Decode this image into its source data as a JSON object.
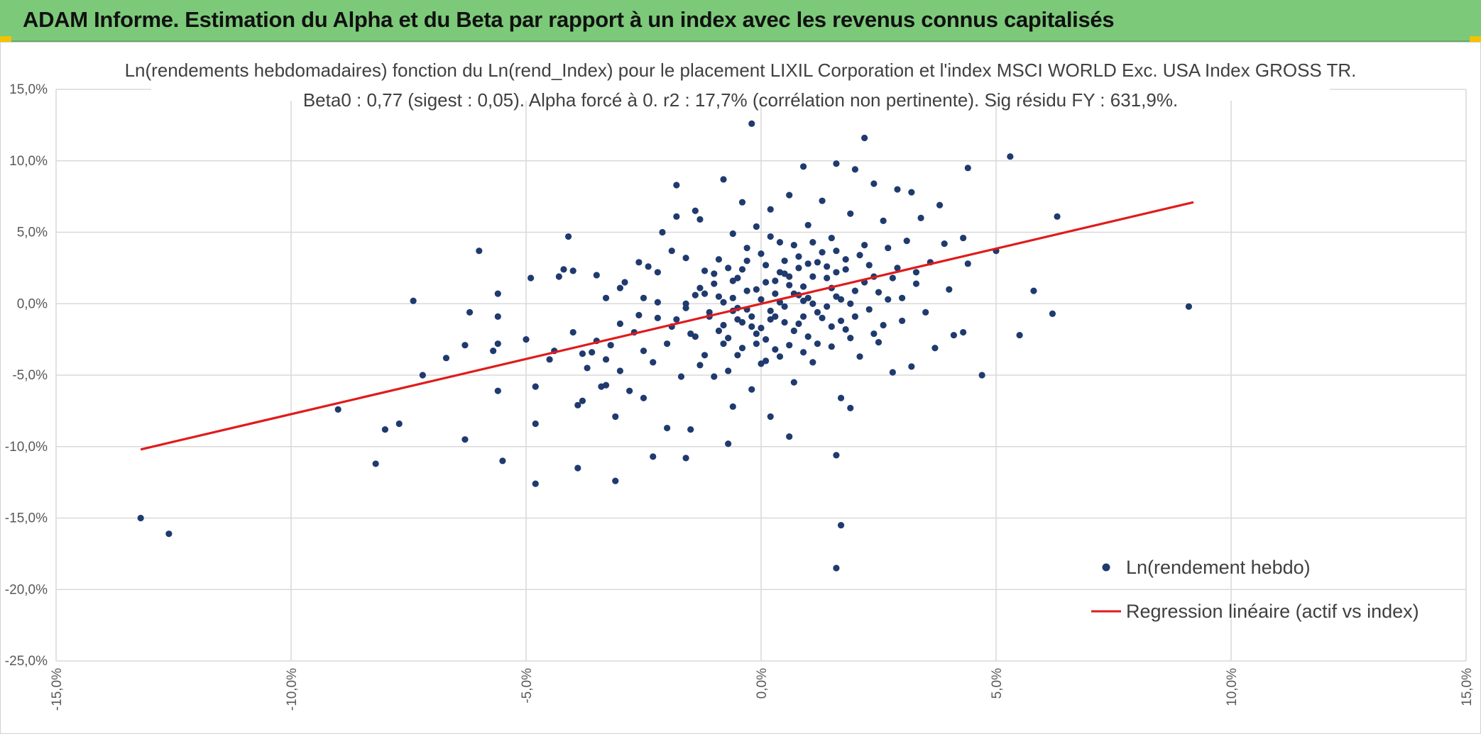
{
  "header": {
    "title": "ADAM Informe. Estimation du Alpha et du Beta par rapport à un index avec les revenus connus capitalisés"
  },
  "colors": {
    "header_bg": "#7cc97a",
    "points": "#1f3a6e",
    "regression": "#e01b1b",
    "grid": "#d9d9d9",
    "corner_accent": "#f2c200"
  },
  "chart_data": {
    "type": "scatter",
    "title_line1": "Ln(rendements hebdomadaires) fonction du Ln(rend_Index) pour le placement LIXIL Corporation et l'index MSCI WORLD Exc. USA Index GROSS TR.",
    "title_line2": "Beta0 : 0,77 (sigest : 0,05). Alpha forcé à 0. r2 : 17,7% (corrélation non pertinente). Sig résidu FY : 631,9%.",
    "xlim": [
      -15,
      15
    ],
    "ylim": [
      -25,
      15
    ],
    "x_ticks": [
      "-15,0%",
      "-10,0%",
      "-5,0%",
      "0,0%",
      "5,0%",
      "10,0%",
      "15,0%"
    ],
    "y_ticks": [
      "15,0%",
      "10,0%",
      "5,0%",
      "0,0%",
      "-5,0%",
      "-10,0%",
      "-15,0%",
      "-20,0%",
      "-25,0%"
    ],
    "grid": true,
    "legend_position": "bottom-right",
    "series": [
      {
        "name": "Ln(rendement hebdo)",
        "kind": "scatter",
        "points": [
          [
            -13.2,
            -15.0
          ],
          [
            -12.6,
            -16.1
          ],
          [
            -9.0,
            -7.4
          ],
          [
            -8.2,
            -11.2
          ],
          [
            -8.0,
            -8.8
          ],
          [
            -7.7,
            -8.4
          ],
          [
            -7.4,
            0.2
          ],
          [
            -7.2,
            -5.0
          ],
          [
            -6.7,
            -3.8
          ],
          [
            -6.3,
            -9.5
          ],
          [
            -6.2,
            -0.6
          ],
          [
            -6.3,
            -2.9
          ],
          [
            -6.0,
            3.7
          ],
          [
            -5.7,
            -3.3
          ],
          [
            -5.6,
            -2.8
          ],
          [
            -5.6,
            -0.9
          ],
          [
            -5.6,
            0.7
          ],
          [
            -5.6,
            -6.1
          ],
          [
            -5.5,
            -11.0
          ],
          [
            -5.0,
            -2.5
          ],
          [
            -4.9,
            1.8
          ],
          [
            -4.8,
            -12.6
          ],
          [
            -4.8,
            -8.4
          ],
          [
            -4.8,
            -5.8
          ],
          [
            -4.5,
            -3.9
          ],
          [
            -4.4,
            -3.3
          ],
          [
            -4.3,
            1.9
          ],
          [
            -4.2,
            2.4
          ],
          [
            -4.0,
            2.3
          ],
          [
            -4.1,
            4.7
          ],
          [
            -4.0,
            -2.0
          ],
          [
            -3.9,
            -11.5
          ],
          [
            -3.9,
            -7.1
          ],
          [
            -3.8,
            -6.8
          ],
          [
            -3.8,
            -3.5
          ],
          [
            -3.7,
            -4.5
          ],
          [
            -3.6,
            -3.4
          ],
          [
            -3.5,
            -2.6
          ],
          [
            -3.5,
            2.0
          ],
          [
            -3.4,
            -5.8
          ],
          [
            -3.3,
            -5.7
          ],
          [
            -3.3,
            -3.9
          ],
          [
            -3.3,
            0.4
          ],
          [
            -3.2,
            -2.9
          ],
          [
            -3.1,
            -12.4
          ],
          [
            -3.1,
            -7.9
          ],
          [
            -3.0,
            1.1
          ],
          [
            -3.0,
            -1.4
          ],
          [
            -3.0,
            -4.7
          ],
          [
            -2.9,
            1.5
          ],
          [
            -2.8,
            -6.1
          ],
          [
            -2.7,
            -2.0
          ],
          [
            -2.6,
            2.9
          ],
          [
            -2.6,
            -0.8
          ],
          [
            -2.5,
            -3.3
          ],
          [
            -2.5,
            -6.6
          ],
          [
            -2.4,
            2.6
          ],
          [
            -2.3,
            -10.7
          ],
          [
            -2.3,
            -4.1
          ],
          [
            -2.2,
            0.1
          ],
          [
            -2.2,
            2.2
          ],
          [
            -2.1,
            5.0
          ],
          [
            -2.0,
            -8.7
          ],
          [
            -2.0,
            -2.8
          ],
          [
            -1.9,
            3.7
          ],
          [
            -1.8,
            8.3
          ],
          [
            -1.8,
            6.1
          ],
          [
            -1.8,
            -1.1
          ],
          [
            -1.7,
            -5.1
          ],
          [
            -1.6,
            -10.8
          ],
          [
            -1.6,
            -0.3
          ],
          [
            -1.6,
            3.2
          ],
          [
            -1.5,
            -8.8
          ],
          [
            -1.5,
            -2.1
          ],
          [
            -1.4,
            6.5
          ],
          [
            -1.4,
            0.6
          ],
          [
            -1.3,
            -4.3
          ],
          [
            -1.3,
            5.9
          ],
          [
            -1.2,
            2.3
          ],
          [
            -1.2,
            -3.6
          ],
          [
            -1.1,
            -0.6
          ],
          [
            -1.0,
            1.4
          ],
          [
            -1.0,
            -5.1
          ],
          [
            -0.9,
            3.1
          ],
          [
            -0.9,
            -1.9
          ],
          [
            -0.8,
            8.7
          ],
          [
            -0.8,
            -2.8
          ],
          [
            -0.8,
            0.1
          ],
          [
            -0.7,
            -9.8
          ],
          [
            -0.7,
            -4.7
          ],
          [
            -0.7,
            2.5
          ],
          [
            -0.6,
            4.9
          ],
          [
            -0.6,
            -7.2
          ],
          [
            -0.6,
            0.4
          ],
          [
            -0.5,
            -1.1
          ],
          [
            -0.5,
            1.8
          ],
          [
            -0.4,
            -3.1
          ],
          [
            -0.4,
            7.1
          ],
          [
            -0.3,
            -0.4
          ],
          [
            -0.3,
            3.9
          ],
          [
            -0.2,
            12.6
          ],
          [
            -0.2,
            -6.0
          ],
          [
            -0.2,
            -1.6
          ],
          [
            -0.1,
            1.0
          ],
          [
            -0.1,
            5.4
          ],
          [
            0.0,
            -4.2
          ],
          [
            0.0,
            0.3
          ],
          [
            0.1,
            2.7
          ],
          [
            0.1,
            -2.5
          ],
          [
            0.2,
            6.6
          ],
          [
            0.2,
            -7.9
          ],
          [
            0.3,
            -0.9
          ],
          [
            0.3,
            1.6
          ],
          [
            0.4,
            4.3
          ],
          [
            0.4,
            -3.7
          ],
          [
            0.5,
            -0.2
          ],
          [
            0.5,
            2.1
          ],
          [
            0.6,
            -9.3
          ],
          [
            0.6,
            7.6
          ],
          [
            0.7,
            0.7
          ],
          [
            0.7,
            -5.5
          ],
          [
            0.8,
            3.3
          ],
          [
            0.8,
            -1.4
          ],
          [
            0.9,
            9.6
          ],
          [
            0.9,
            1.2
          ],
          [
            1.0,
            -2.3
          ],
          [
            1.0,
            5.5
          ],
          [
            1.1,
            0.0
          ],
          [
            1.1,
            -4.1
          ],
          [
            1.2,
            2.9
          ],
          [
            1.3,
            -1.0
          ],
          [
            1.3,
            7.2
          ],
          [
            1.4,
            1.8
          ],
          [
            1.5,
            -3.0
          ],
          [
            1.5,
            4.6
          ],
          [
            1.6,
            -10.6
          ],
          [
            1.6,
            9.8
          ],
          [
            1.6,
            0.5
          ],
          [
            1.7,
            -15.5
          ],
          [
            1.6,
            -18.5
          ],
          [
            1.7,
            -6.6
          ],
          [
            1.8,
            2.4
          ],
          [
            1.8,
            -1.8
          ],
          [
            1.9,
            6.3
          ],
          [
            1.9,
            -7.3
          ],
          [
            2.0,
            9.4
          ],
          [
            2.0,
            0.9
          ],
          [
            2.1,
            -3.7
          ],
          [
            2.2,
            11.6
          ],
          [
            2.2,
            4.1
          ],
          [
            2.3,
            -0.4
          ],
          [
            2.4,
            8.4
          ],
          [
            2.4,
            1.9
          ],
          [
            2.5,
            -2.7
          ],
          [
            2.6,
            5.8
          ],
          [
            2.7,
            0.3
          ],
          [
            2.8,
            -4.8
          ],
          [
            2.9,
            8.0
          ],
          [
            2.9,
            2.5
          ],
          [
            3.0,
            -1.2
          ],
          [
            3.1,
            4.4
          ],
          [
            3.2,
            -4.4
          ],
          [
            3.2,
            7.8
          ],
          [
            3.3,
            1.4
          ],
          [
            3.4,
            6.0
          ],
          [
            3.5,
            -0.6
          ],
          [
            3.6,
            2.9
          ],
          [
            3.7,
            -3.1
          ],
          [
            3.8,
            6.9
          ],
          [
            3.9,
            4.2
          ],
          [
            4.0,
            1.0
          ],
          [
            4.1,
            -2.2
          ],
          [
            4.3,
            4.6
          ],
          [
            4.3,
            -2.0
          ],
          [
            4.4,
            9.5
          ],
          [
            4.4,
            2.8
          ],
          [
            4.7,
            -5.0
          ],
          [
            5.0,
            3.7
          ],
          [
            5.3,
            10.3
          ],
          [
            5.5,
            -2.2
          ],
          [
            5.8,
            0.9
          ],
          [
            6.2,
            -0.7
          ],
          [
            6.3,
            6.1
          ],
          [
            9.1,
            -0.2
          ],
          [
            -0.3,
            0.9
          ],
          [
            0.2,
            -1.1
          ],
          [
            0.6,
            1.3
          ],
          [
            -0.5,
            -0.3
          ],
          [
            0.9,
            0.2
          ],
          [
            1.2,
            -0.6
          ],
          [
            -0.9,
            0.5
          ],
          [
            0.4,
            2.2
          ],
          [
            -0.1,
            -2.1
          ],
          [
            1.5,
            1.1
          ],
          [
            0.7,
            -1.9
          ],
          [
            -0.6,
            1.6
          ],
          [
            1.9,
            0.0
          ],
          [
            0.0,
            3.5
          ],
          [
            -1.1,
            -0.9
          ],
          [
            2.2,
            1.5
          ],
          [
            0.3,
            -3.2
          ],
          [
            1.0,
            2.8
          ],
          [
            -0.2,
            -0.9
          ],
          [
            0.8,
            0.6
          ],
          [
            -1.3,
            1.1
          ],
          [
            1.7,
            -1.2
          ],
          [
            0.5,
            3.0
          ],
          [
            -0.7,
            -2.4
          ],
          [
            2.5,
            0.8
          ],
          [
            0.1,
            1.5
          ],
          [
            1.4,
            -0.2
          ],
          [
            -0.4,
            2.4
          ],
          [
            0.6,
            -2.9
          ],
          [
            1.8,
            3.1
          ],
          [
            -1.6,
            0.0
          ],
          [
            2.8,
            1.8
          ],
          [
            0.2,
            -0.5
          ],
          [
            1.1,
            1.9
          ],
          [
            -0.8,
            -1.5
          ],
          [
            2.0,
            -0.9
          ],
          [
            0.4,
            0.1
          ],
          [
            1.3,
            3.6
          ],
          [
            -1.9,
            -1.6
          ],
          [
            3.0,
            0.4
          ],
          [
            0.9,
            -0.9
          ],
          [
            -0.3,
            3.0
          ],
          [
            1.6,
            2.2
          ],
          [
            0.0,
            -1.7
          ],
          [
            2.3,
            2.7
          ],
          [
            -1.0,
            2.1
          ],
          [
            0.7,
            4.1
          ],
          [
            1.2,
            -2.8
          ],
          [
            -0.5,
            -3.6
          ],
          [
            2.6,
            -1.5
          ],
          [
            0.3,
            0.7
          ],
          [
            1.5,
            -1.6
          ],
          [
            -1.4,
            -2.3
          ],
          [
            3.3,
            2.2
          ],
          [
            0.8,
            2.5
          ],
          [
            -0.1,
            -2.8
          ],
          [
            2.1,
            3.4
          ],
          [
            1.0,
            0.4
          ],
          [
            -2.2,
            -1.0
          ],
          [
            0.5,
            -1.3
          ],
          [
            1.7,
            0.3
          ],
          [
            -0.6,
            -0.5
          ],
          [
            2.4,
            -2.1
          ],
          [
            0.2,
            4.7
          ],
          [
            1.4,
            2.6
          ],
          [
            -1.2,
            0.7
          ],
          [
            0.6,
            1.9
          ],
          [
            1.9,
            -2.4
          ],
          [
            -0.4,
            -1.3
          ],
          [
            2.7,
            3.9
          ],
          [
            0.1,
            -4.0
          ],
          [
            1.1,
            4.3
          ],
          [
            -2.5,
            0.4
          ],
          [
            0.9,
            -3.4
          ],
          [
            1.6,
            3.7
          ]
        ]
      },
      {
        "name": "Regression linéaire (actif vs index)",
        "kind": "line",
        "points": [
          [
            -13.2,
            -10.2
          ],
          [
            9.2,
            7.1
          ]
        ]
      }
    ]
  }
}
